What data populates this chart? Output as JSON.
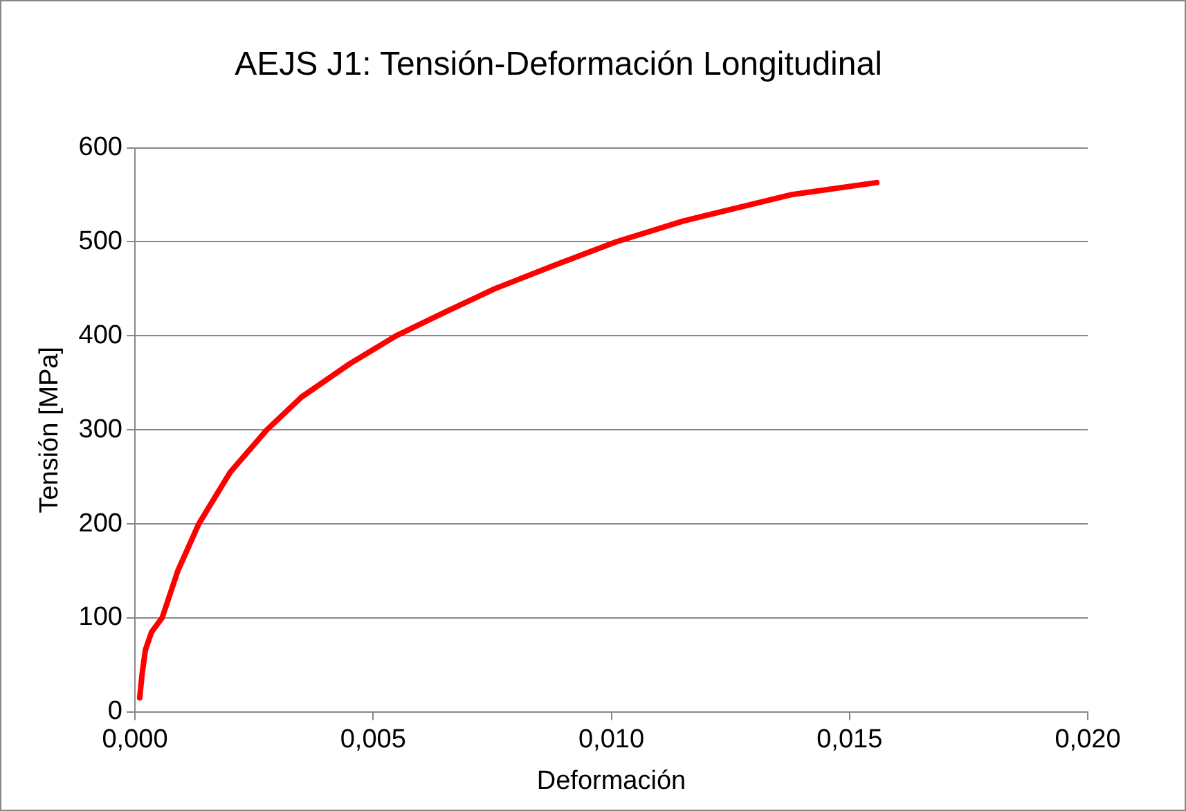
{
  "chart_data": {
    "type": "line",
    "title": "AEJS J1: Tensión-Deformación Longitudinal",
    "xlabel": "Deformación",
    "ylabel": "Tensión [MPa]",
    "series": [
      {
        "color": "#ff0000",
        "x": [
          0.0001,
          0.00015,
          0.00022,
          0.00035,
          0.00057,
          0.0009,
          0.00134,
          0.002,
          0.00277,
          0.0035,
          0.0045,
          0.00548,
          0.0065,
          0.00755,
          0.0088,
          0.0101,
          0.0115,
          0.01376,
          0.01557
        ],
        "values": [
          15,
          40,
          66,
          85,
          100,
          150,
          200,
          255,
          300,
          335,
          370,
          400,
          425,
          450,
          475,
          500,
          522,
          550,
          563
        ]
      }
    ],
    "xlim": [
      0,
      0.02
    ],
    "xticks": [
      {
        "value": 0,
        "label": "0,000"
      },
      {
        "value": 0.005,
        "label": "0,005"
      },
      {
        "value": 0.01,
        "label": "0,010"
      },
      {
        "value": 0.015,
        "label": "0,015"
      },
      {
        "value": 0.02,
        "label": "0,020"
      }
    ],
    "ylim": [
      0,
      600
    ],
    "yticks": [
      0,
      100,
      200,
      300,
      400,
      500,
      600
    ],
    "grid": "y",
    "legend": false,
    "marker": "none",
    "line_style": "solid"
  }
}
